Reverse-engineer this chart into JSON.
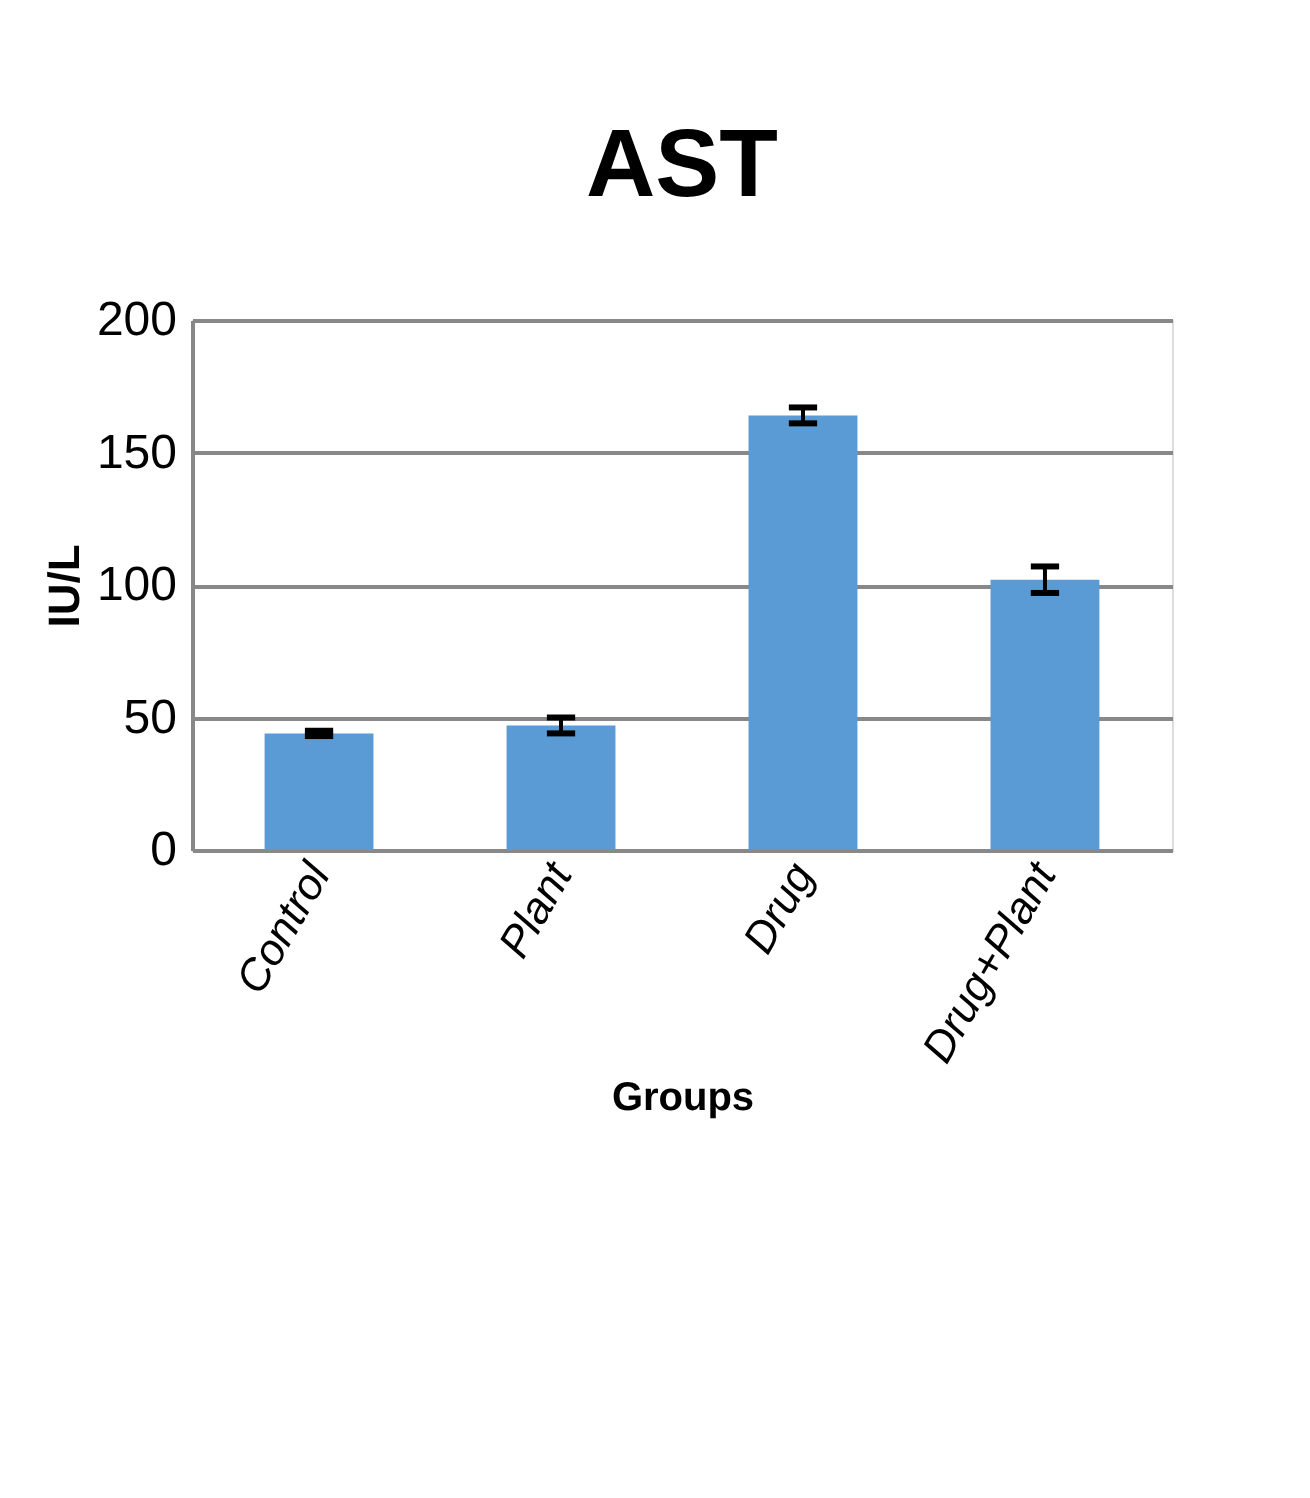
{
  "chart_data": {
    "type": "bar",
    "title": "AST",
    "xlabel": "Groups",
    "ylabel": "IU/L",
    "categories": [
      "Control",
      "Plant",
      "Drug",
      "Drug+Plant"
    ],
    "values": [
      44,
      47,
      164,
      102
    ],
    "errors": [
      1,
      3,
      3,
      5
    ],
    "color": "#5b9bd5",
    "ylim": [
      0,
      200
    ],
    "yticks": [
      0,
      50,
      100,
      150,
      200
    ],
    "grid": "y"
  }
}
